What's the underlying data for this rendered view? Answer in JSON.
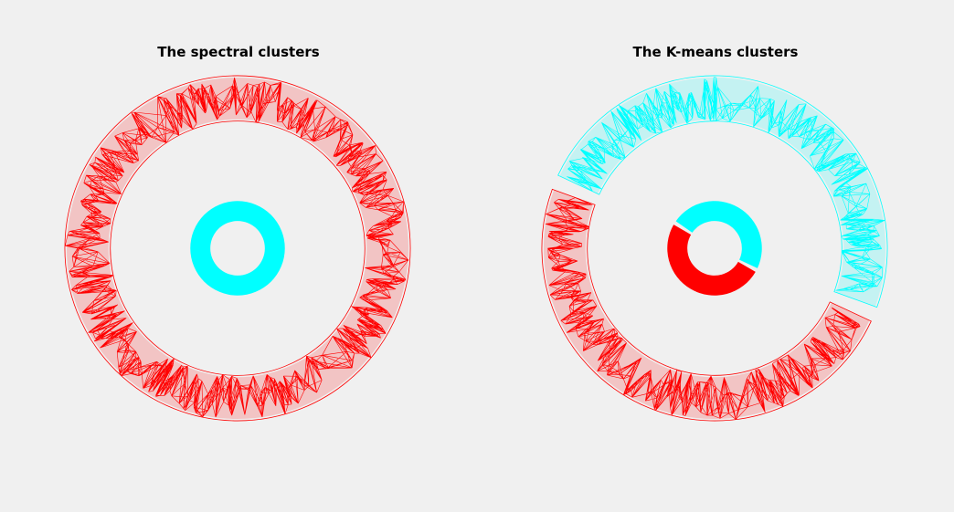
{
  "figure": {
    "background": "#f0f0f0"
  },
  "chart_data": [
    {
      "type": "scatter",
      "title": "The spectral clusters",
      "xlabel": "",
      "ylabel": "",
      "axes_visible": false,
      "grid": false,
      "xlim": [
        -1.9,
        1.9
      ],
      "ylim": [
        -1.9,
        1.9
      ],
      "series": [
        {
          "color": "#ff0000",
          "ring": {
            "r_inner": 1.4,
            "r_outer": 1.9
          },
          "arc_deg": [
            0,
            360
          ],
          "render": "dense-line-mesh"
        },
        {
          "color": "#00ffff",
          "ring": {
            "r_inner": 0.3,
            "r_outer": 0.52
          },
          "arc_deg": [
            0,
            360
          ],
          "render": "filled"
        }
      ]
    },
    {
      "type": "scatter",
      "title": "The K-means clusters",
      "xlabel": "",
      "ylabel": "",
      "axes_visible": false,
      "grid": false,
      "xlim": [
        -1.9,
        1.9
      ],
      "ylim": [
        -1.9,
        1.9
      ],
      "series": [
        {
          "color": "#00ffff",
          "ring": {
            "r_inner": 1.4,
            "r_outer": 1.9
          },
          "arc_deg": [
            -20,
            155
          ],
          "render": "dense-line-mesh"
        },
        {
          "color": "#ff0000",
          "ring": {
            "r_inner": 1.4,
            "r_outer": 1.9
          },
          "arc_deg": [
            160,
            335
          ],
          "render": "dense-line-mesh"
        },
        {
          "color": "#00ffff",
          "ring": {
            "r_inner": 0.3,
            "r_outer": 0.52
          },
          "arc_deg": [
            -25,
            145
          ],
          "render": "filled"
        },
        {
          "color": "#ff0000",
          "ring": {
            "r_inner": 0.3,
            "r_outer": 0.52
          },
          "arc_deg": [
            150,
            330
          ],
          "render": "filled"
        }
      ]
    }
  ]
}
